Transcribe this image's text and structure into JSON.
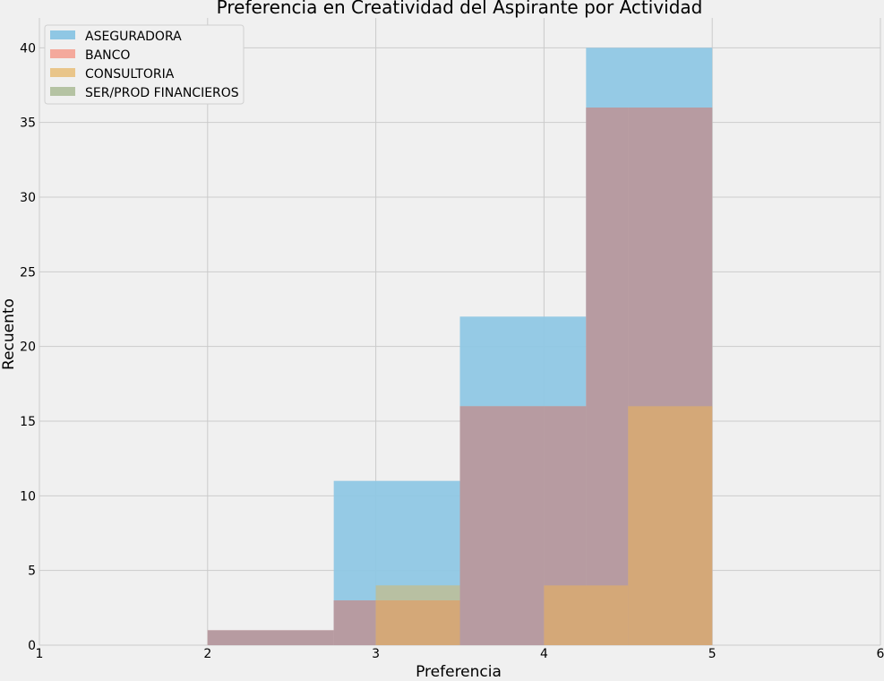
{
  "chart_data": {
    "type": "bar",
    "title": "Preferencia en Creatividad del Aspirante por Actividad",
    "xlabel": "Preferencia",
    "ylabel": "Recuento",
    "xlim": [
      1,
      6
    ],
    "ylim": [
      0,
      42
    ],
    "xticks": [
      "1",
      "2",
      "3",
      "4",
      "5",
      "6"
    ],
    "yticks": [
      "0",
      "5",
      "10",
      "15",
      "20",
      "25",
      "30",
      "35",
      "40"
    ],
    "grid": true,
    "legend_position": "top-left",
    "series": [
      {
        "name": "ASEGURADORA",
        "color": "#8fc7e4",
        "bins": [
          {
            "x0": 2.0,
            "x1": 2.75,
            "count": 0
          },
          {
            "x0": 2.75,
            "x1": 3.5,
            "count": 11
          },
          {
            "x0": 3.5,
            "x1": 4.25,
            "count": 22
          },
          {
            "x0": 4.25,
            "x1": 5.0,
            "count": 40
          }
        ]
      },
      {
        "name": "BANCO",
        "color": "#f4a99c",
        "bins": [
          {
            "x0": 2.0,
            "x1": 2.75,
            "count": 1
          },
          {
            "x0": 2.75,
            "x1": 3.5,
            "count": 3
          },
          {
            "x0": 3.5,
            "x1": 4.25,
            "count": 16
          },
          {
            "x0": 4.25,
            "x1": 5.0,
            "count": 36
          }
        ]
      },
      {
        "name": "CONSULTORIA",
        "color": "#e9c58a",
        "bins": [
          {
            "x0": 3.0,
            "x1": 3.5,
            "count": 3
          },
          {
            "x0": 3.5,
            "x1": 4.0,
            "count": 0
          },
          {
            "x0": 4.0,
            "x1": 4.5,
            "count": 4
          },
          {
            "x0": 4.5,
            "x1": 5.0,
            "count": 16
          }
        ]
      },
      {
        "name": "SER/PROD FINANCIEROS",
        "color": "#b5c3a3",
        "bins": [
          {
            "x0": 3.0,
            "x1": 3.5,
            "count": 4
          },
          {
            "x0": 3.5,
            "x1": 4.0,
            "count": 16
          },
          {
            "x0": 4.0,
            "x1": 4.5,
            "count": 16
          },
          {
            "x0": 4.5,
            "x1": 5.0,
            "count": 36
          }
        ]
      }
    ],
    "overlap_colors": {
      "purple": "#b79ba1",
      "tan": "#d4a878",
      "muted_green": "#b8c0a2"
    }
  }
}
